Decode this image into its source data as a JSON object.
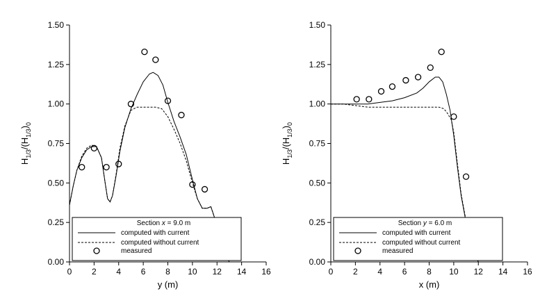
{
  "chart_data": [
    {
      "type": "line",
      "ylabel": {
        "main": "H",
        "sub1": "1/3",
        "mid": "/(H",
        "sub2": "1/3",
        "close": ")",
        "sub3": "0"
      },
      "xlabel": "y (m)",
      "xlim": [
        0,
        16
      ],
      "ylim": [
        0,
        1.5
      ],
      "x_ticks": [
        0,
        2,
        4,
        6,
        8,
        10,
        12,
        14,
        16
      ],
      "y_ticks": [
        0.0,
        0.25,
        0.5,
        0.75,
        1.0,
        1.25,
        1.5
      ],
      "x_tick_labels": [
        "0",
        "2",
        "4",
        "6",
        "8",
        "10",
        "12",
        "14",
        "16"
      ],
      "y_tick_labels": [
        "0.00",
        "0.25",
        "0.50",
        "0.75",
        "1.00",
        "1.25",
        "1.50"
      ],
      "legend": {
        "title_prefix": "Section",
        "title_var": "x",
        "title_suffix": "= 9.0 m",
        "entries": [
          "computed with current",
          "computed without current",
          "measured"
        ]
      },
      "series": [
        {
          "name": "computed with current",
          "style": "solid",
          "x": [
            0,
            0.3,
            0.6,
            1.0,
            1.4,
            1.8,
            2.2,
            2.6,
            2.9,
            3.1,
            3.3,
            3.5,
            3.8,
            4.1,
            4.5,
            5.0,
            5.5,
            6.0,
            6.5,
            6.8,
            7.2,
            7.6,
            8.0,
            8.5,
            9.0,
            9.5,
            10.0,
            10.4,
            10.8,
            11.2,
            11.5,
            11.8,
            12.1,
            12.4,
            12.7,
            13.0
          ],
          "y": [
            0.36,
            0.48,
            0.58,
            0.66,
            0.71,
            0.73,
            0.73,
            0.66,
            0.5,
            0.4,
            0.38,
            0.42,
            0.55,
            0.7,
            0.85,
            0.97,
            1.06,
            1.14,
            1.19,
            1.2,
            1.18,
            1.12,
            1.01,
            0.89,
            0.79,
            0.68,
            0.52,
            0.4,
            0.34,
            0.34,
            0.35,
            0.28,
            0.18,
            0.09,
            0.05,
            0.0
          ]
        },
        {
          "name": "computed without current",
          "style": "dashed",
          "x": [
            0,
            0.3,
            0.6,
            1.0,
            1.4,
            1.8,
            2.2,
            2.6,
            2.9,
            3.1,
            3.3,
            3.5,
            3.8,
            4.1,
            4.5,
            5.0,
            5.5,
            6.0,
            6.5,
            7.0,
            7.5,
            8.0,
            8.5,
            9.0,
            9.5,
            10.0,
            10.4,
            10.8,
            11.2,
            11.5,
            11.8,
            12.1,
            12.4,
            12.7,
            13.0
          ],
          "y": [
            0.36,
            0.48,
            0.58,
            0.67,
            0.72,
            0.74,
            0.73,
            0.66,
            0.5,
            0.4,
            0.38,
            0.42,
            0.56,
            0.72,
            0.86,
            0.96,
            0.98,
            0.98,
            0.98,
            0.98,
            0.97,
            0.92,
            0.84,
            0.75,
            0.64,
            0.5,
            0.4,
            0.34,
            0.34,
            0.35,
            0.28,
            0.18,
            0.09,
            0.05,
            0.0
          ]
        },
        {
          "name": "measured",
          "style": "marker",
          "x": [
            1.0,
            2.0,
            3.0,
            4.0,
            5.0,
            6.1,
            7.0,
            8.0,
            9.1,
            10.0,
            11.0
          ],
          "y": [
            0.6,
            0.72,
            0.6,
            0.62,
            1.0,
            1.33,
            1.28,
            1.02,
            0.93,
            0.49,
            0.46
          ]
        }
      ]
    },
    {
      "type": "line",
      "ylabel": {
        "main": "H",
        "sub1": "1/3",
        "mid": "/(H",
        "sub2": "1/3",
        "close": ")",
        "sub3": "0"
      },
      "xlabel": "x (m)",
      "xlim": [
        0,
        16
      ],
      "ylim": [
        0,
        1.5
      ],
      "x_ticks": [
        0,
        2,
        4,
        6,
        8,
        10,
        12,
        14,
        16
      ],
      "y_ticks": [
        0.0,
        0.25,
        0.5,
        0.75,
        1.0,
        1.25,
        1.5
      ],
      "x_tick_labels": [
        "0",
        "2",
        "4",
        "6",
        "8",
        "10",
        "12",
        "14",
        "16"
      ],
      "y_tick_labels": [
        "0.00",
        "0.25",
        "0.50",
        "0.75",
        "1.00",
        "1.25",
        "1.50"
      ],
      "legend": {
        "title_prefix": "Section",
        "title_var": "y",
        "title_suffix": "= 6.0 m",
        "entries": [
          "computed with current",
          "computed without current",
          "measured"
        ]
      },
      "series": [
        {
          "name": "computed with current",
          "style": "solid",
          "x": [
            0,
            1,
            2,
            3,
            4,
            5,
            6,
            7,
            7.5,
            8.0,
            8.5,
            8.8,
            9.1,
            9.4,
            9.7,
            10.0,
            10.3,
            10.6,
            11.0,
            11.4,
            11.8,
            12.0
          ],
          "y": [
            1.0,
            1.0,
            1.0,
            1.0,
            1.01,
            1.02,
            1.04,
            1.07,
            1.1,
            1.14,
            1.17,
            1.17,
            1.14,
            1.06,
            0.96,
            0.8,
            0.6,
            0.42,
            0.25,
            0.12,
            0.03,
            0.0
          ]
        },
        {
          "name": "computed without current",
          "style": "dashed",
          "x": [
            0,
            1,
            2,
            3,
            4,
            5,
            6,
            7,
            8,
            8.8,
            9.2,
            9.5,
            9.8,
            10.0,
            10.3,
            10.6,
            11.0,
            11.4,
            11.8,
            12.0
          ],
          "y": [
            1.0,
            1.0,
            0.99,
            0.98,
            0.98,
            0.98,
            0.98,
            0.98,
            0.98,
            0.98,
            0.97,
            0.94,
            0.9,
            0.82,
            0.62,
            0.43,
            0.26,
            0.13,
            0.03,
            0.0
          ]
        },
        {
          "name": "measured",
          "style": "marker",
          "x": [
            2.1,
            3.1,
            4.1,
            5.0,
            6.1,
            7.1,
            8.1,
            9.0,
            10.0,
            11.0
          ],
          "y": [
            1.03,
            1.03,
            1.08,
            1.11,
            1.15,
            1.17,
            1.23,
            1.33,
            0.92,
            0.54
          ]
        }
      ]
    }
  ]
}
